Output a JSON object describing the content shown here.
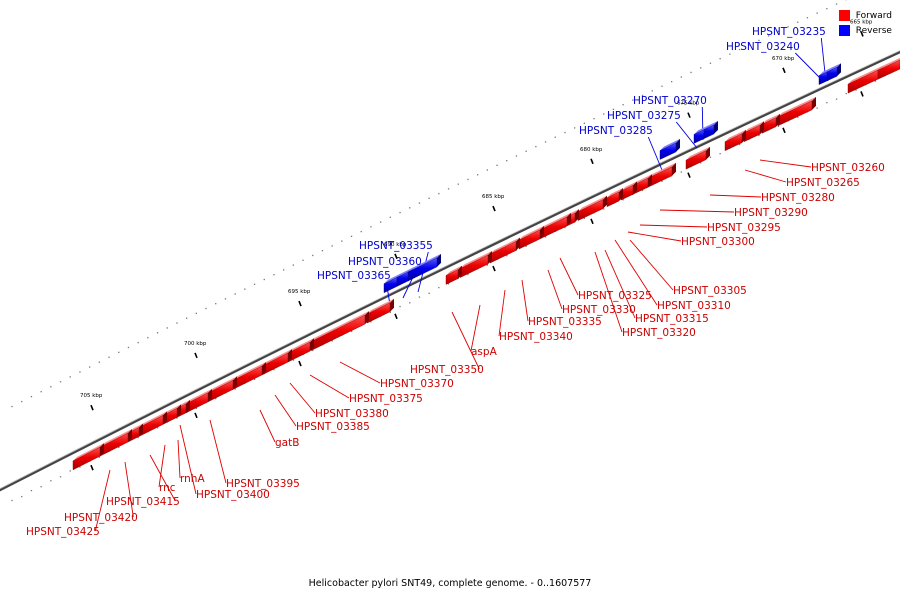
{
  "caption": "Helicobacter pylori SNT49, complete genome. - 0..1607577",
  "legend": [
    {
      "label": "Forward",
      "color": "#ff0000"
    },
    {
      "label": "Reverse",
      "color": "#0000ff"
    }
  ],
  "strand_colors": {
    "forward": "#e00000",
    "reverse": "#0000e0",
    "forward_label": "#cc0000",
    "reverse_label": "#0000cc"
  },
  "ticks": [
    "665 kbp",
    "670 kbp",
    "675 kbp",
    "680 kbp",
    "685 kbp",
    "690 kbp",
    "695 kbp",
    "700 kbp",
    "705 kbp"
  ],
  "forward_labels": [
    "HPSNT_03260",
    "HPSNT_03265",
    "HPSNT_03280",
    "HPSNT_03290",
    "HPSNT_03295",
    "HPSNT_03300",
    "HPSNT_03305",
    "HPSNT_03310",
    "HPSNT_03315",
    "HPSNT_03320",
    "HPSNT_03325",
    "HPSNT_03330",
    "HPSNT_03335",
    "HPSNT_03340",
    "aspA",
    "HPSNT_03350",
    "HPSNT_03370",
    "HPSNT_03375",
    "HPSNT_03380",
    "HPSNT_03385",
    "gatB",
    "HPSNT_03395",
    "HPSNT_03400",
    "rnhA",
    "rnc",
    "HPSNT_03415",
    "HPSNT_03420",
    "HPSNT_03425"
  ],
  "reverse_labels": [
    "HPSNT_03235",
    "HPSNT_03240",
    "HPSNT_03270",
    "HPSNT_03275",
    "HPSNT_03285",
    "HPSNT_03355",
    "HPSNT_03360",
    "HPSNT_03365"
  ]
}
